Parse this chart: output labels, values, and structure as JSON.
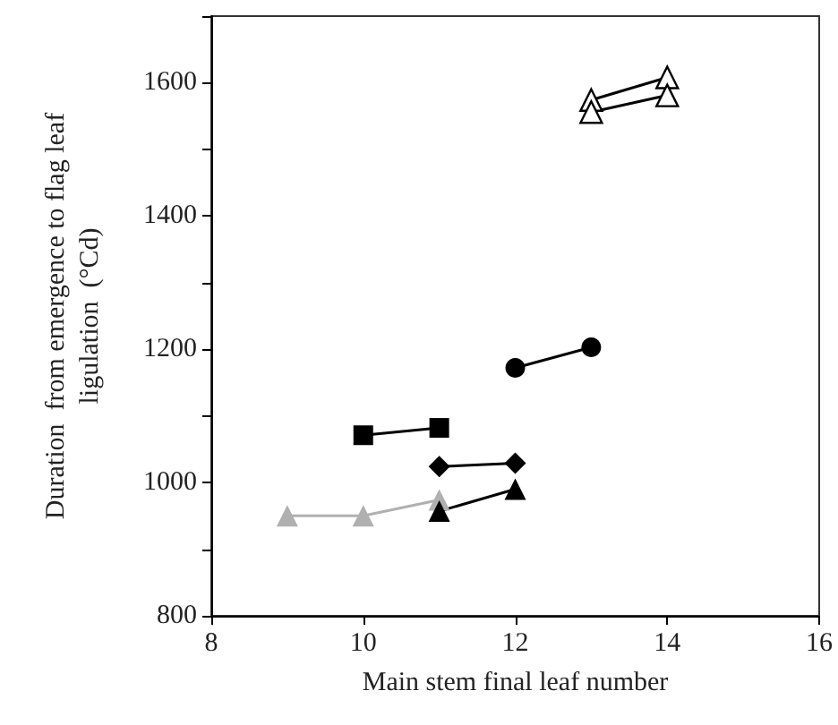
{
  "chart_data": {
    "type": "line",
    "xlabel": "Main stem final leaf number",
    "ylabel": "Duration  from emergence to flag leaf\nligulation  (°Cd)",
    "xlim": [
      8,
      16
    ],
    "xticks": [
      8,
      10,
      12,
      14,
      16
    ],
    "ylim": [
      800,
      1700
    ],
    "yticks": [
      800,
      {
        "value": 900,
        "label": null
      },
      1000,
      {
        "value": 1100,
        "label": null
      },
      1200,
      {
        "value": 1300,
        "label": null
      },
      1400,
      {
        "value": 1500,
        "label": null
      },
      1600,
      {
        "value": 1700,
        "label": null
      }
    ],
    "grid": false,
    "series": [
      {
        "color": "#000000",
        "marker": "square",
        "x": [
          10,
          11
        ],
        "values": [
          1071,
          1082
        ]
      },
      {
        "color": "#000000",
        "marker": "circle",
        "x": [
          12,
          13
        ],
        "values": [
          1172,
          1203
        ]
      },
      {
        "color": "#000000",
        "marker": "diamond",
        "x": [
          11,
          12
        ],
        "values": [
          1024,
          1029
        ]
      },
      {
        "color": "#b0b0b0",
        "marker": "triangle",
        "x": [
          9,
          10,
          11
        ],
        "values": [
          950,
          950,
          974
        ]
      },
      {
        "color": "#000000",
        "marker": "triangle",
        "x": [
          11,
          12
        ],
        "values": [
          957,
          990
        ]
      },
      {
        "color": "#000000",
        "marker": "triangle",
        "colors": [
          "#ffffff",
          "#ffffff"
        ],
        "x": [
          13,
          14
        ],
        "values": [
          1574,
          1608
        ]
      },
      {
        "color": "#000000",
        "marker": "triangle",
        "colors": [
          "#ffffff",
          "#ffffff"
        ],
        "x": [
          13,
          14
        ],
        "values": [
          1556,
          1581
        ]
      }
    ]
  }
}
